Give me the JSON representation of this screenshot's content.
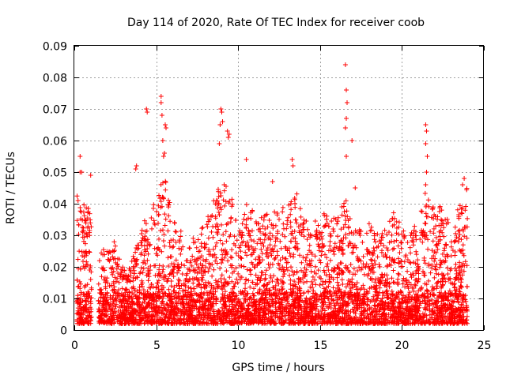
{
  "chart_data": {
    "type": "scatter",
    "title": "Day 114 of 2020, Rate Of TEC Index for receiver coob",
    "xlabel": "GPS time / hours",
    "ylabel": "ROTI / TECUs",
    "xlim": [
      0,
      25
    ],
    "ylim": [
      0,
      0.09
    ],
    "xticks": [
      0,
      5,
      10,
      15,
      20,
      25
    ],
    "xtick_labels": [
      "0",
      "5",
      "10",
      "15",
      "20",
      "25"
    ],
    "yticks": [
      0,
      0.01,
      0.02,
      0.03,
      0.04,
      0.05,
      0.06,
      0.07,
      0.08,
      0.09
    ],
    "ytick_labels": [
      "0",
      "0.01",
      "0.02",
      "0.03",
      "0.04",
      "0.05",
      "0.06",
      "0.07",
      "0.08",
      "0.09"
    ],
    "grid": true,
    "marker": "+",
    "color": "#ff0000",
    "envelope": [
      [
        0.3,
        0.043
      ],
      [
        0.55,
        0.041
      ],
      [
        0.85,
        0.039
      ],
      [
        1.5,
        0.025
      ],
      [
        2.0,
        0.026
      ],
      [
        2.5,
        0.029
      ],
      [
        3.0,
        0.019
      ],
      [
        3.5,
        0.022
      ],
      [
        4.0,
        0.03
      ],
      [
        4.5,
        0.04
      ],
      [
        5.0,
        0.04
      ],
      [
        5.5,
        0.052
      ],
      [
        6.0,
        0.035
      ],
      [
        6.5,
        0.032
      ],
      [
        7.0,
        0.027
      ],
      [
        7.5,
        0.031
      ],
      [
        8.0,
        0.034
      ],
      [
        8.5,
        0.042
      ],
      [
        9.0,
        0.047
      ],
      [
        9.5,
        0.045
      ],
      [
        10.0,
        0.031
      ],
      [
        10.5,
        0.04
      ],
      [
        11.0,
        0.038
      ],
      [
        11.5,
        0.036
      ],
      [
        12.0,
        0.04
      ],
      [
        12.5,
        0.038
      ],
      [
        13.0,
        0.04
      ],
      [
        13.5,
        0.045
      ],
      [
        14.0,
        0.036
      ],
      [
        14.5,
        0.033
      ],
      [
        15.0,
        0.038
      ],
      [
        15.5,
        0.036
      ],
      [
        16.0,
        0.04
      ],
      [
        16.5,
        0.043
      ],
      [
        17.0,
        0.032
      ],
      [
        17.5,
        0.032
      ],
      [
        18.0,
        0.034
      ],
      [
        18.5,
        0.033
      ],
      [
        19.0,
        0.032
      ],
      [
        19.5,
        0.038
      ],
      [
        20.0,
        0.033
      ],
      [
        20.5,
        0.03
      ],
      [
        21.0,
        0.036
      ],
      [
        21.5,
        0.045
      ],
      [
        22.0,
        0.038
      ],
      [
        22.5,
        0.04
      ],
      [
        23.0,
        0.032
      ],
      [
        23.5,
        0.043
      ],
      [
        23.9,
        0.046
      ]
    ],
    "peaks": [
      {
        "x": 0.35,
        "y": 0.05
      },
      {
        "x": 0.35,
        "y": 0.055
      },
      {
        "x": 0.45,
        "y": 0.05
      },
      {
        "x": 1.0,
        "y": 0.049
      },
      {
        "x": 3.75,
        "y": 0.051
      },
      {
        "x": 3.8,
        "y": 0.052
      },
      {
        "x": 4.4,
        "y": 0.07
      },
      {
        "x": 4.45,
        "y": 0.069
      },
      {
        "x": 5.3,
        "y": 0.074
      },
      {
        "x": 5.3,
        "y": 0.072
      },
      {
        "x": 5.35,
        "y": 0.068
      },
      {
        "x": 5.4,
        "y": 0.06
      },
      {
        "x": 5.55,
        "y": 0.065
      },
      {
        "x": 5.6,
        "y": 0.064
      },
      {
        "x": 5.5,
        "y": 0.056
      },
      {
        "x": 5.45,
        "y": 0.055
      },
      {
        "x": 8.95,
        "y": 0.07
      },
      {
        "x": 9.0,
        "y": 0.069
      },
      {
        "x": 9.05,
        "y": 0.066
      },
      {
        "x": 8.9,
        "y": 0.065
      },
      {
        "x": 8.85,
        "y": 0.059
      },
      {
        "x": 9.35,
        "y": 0.063
      },
      {
        "x": 9.45,
        "y": 0.062
      },
      {
        "x": 9.4,
        "y": 0.061
      },
      {
        "x": 10.5,
        "y": 0.054
      },
      {
        "x": 12.1,
        "y": 0.047
      },
      {
        "x": 13.3,
        "y": 0.054
      },
      {
        "x": 13.35,
        "y": 0.052
      },
      {
        "x": 16.55,
        "y": 0.084
      },
      {
        "x": 16.6,
        "y": 0.076
      },
      {
        "x": 16.65,
        "y": 0.072
      },
      {
        "x": 16.6,
        "y": 0.067
      },
      {
        "x": 16.55,
        "y": 0.064
      },
      {
        "x": 16.6,
        "y": 0.055
      },
      {
        "x": 16.95,
        "y": 0.06
      },
      {
        "x": 17.15,
        "y": 0.045
      },
      {
        "x": 21.45,
        "y": 0.065
      },
      {
        "x": 21.5,
        "y": 0.063
      },
      {
        "x": 21.45,
        "y": 0.059
      },
      {
        "x": 21.55,
        "y": 0.055
      },
      {
        "x": 21.5,
        "y": 0.05
      },
      {
        "x": 21.45,
        "y": 0.046
      },
      {
        "x": 23.8,
        "y": 0.048
      },
      {
        "x": 23.7,
        "y": 0.046
      }
    ],
    "data_gaps_hours": [
      [
        0.0,
        0.15
      ],
      [
        1.05,
        1.45
      ],
      [
        24.0,
        25.0
      ]
    ]
  }
}
